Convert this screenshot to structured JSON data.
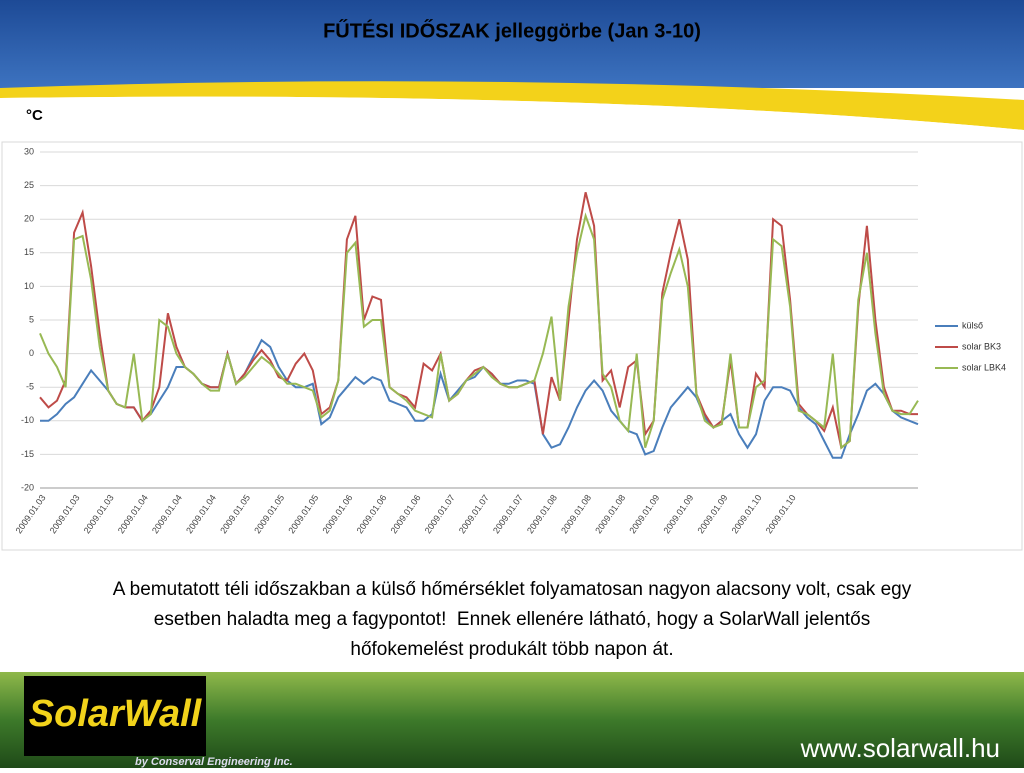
{
  "chart_data": {
    "type": "line",
    "title": "FŰTÉSI IDŐSZAK jelleggörbe (Jan 3-10)",
    "y_label": "°C",
    "categories": [
      "2009.01.03",
      null,
      null,
      null,
      "2009.01.03",
      null,
      null,
      null,
      "2009.01.03",
      null,
      null,
      null,
      "2009.01.04",
      null,
      null,
      null,
      "2009.01.04",
      null,
      null,
      null,
      "2009.01.04",
      null,
      null,
      null,
      "2009.01.05",
      null,
      null,
      null,
      "2009.01.05",
      null,
      null,
      null,
      "2009.01.05",
      null,
      null,
      null,
      "2009.01.06",
      null,
      null,
      null,
      "2009.01.06",
      null,
      null,
      null,
      "2009.01.06",
      null,
      null,
      null,
      "2009.01.07",
      null,
      null,
      null,
      "2009.01.07",
      null,
      null,
      null,
      "2009.01.07",
      null,
      null,
      null,
      "2009.01.08",
      null,
      null,
      null,
      "2009.01.08",
      null,
      null,
      null,
      "2009.01.08",
      null,
      null,
      null,
      "2009.01.09",
      null,
      null,
      null,
      "2009.01.09",
      null,
      null,
      null,
      "2009.01.09",
      null,
      null,
      null,
      "2009.01.10",
      null,
      null,
      null,
      "2009.01.10",
      null,
      null,
      null,
      null,
      null,
      null,
      null,
      null,
      null,
      null,
      null,
      null,
      null,
      null,
      null
    ],
    "series": [
      {
        "name": "külső",
        "color": "#4a7ebb",
        "values": [
          -10,
          -10,
          -9,
          -7.5,
          -6.5,
          -4.5,
          -2.5,
          -4,
          -5.5,
          -7.5,
          -8,
          -8,
          -10,
          -9,
          -7,
          -5,
          -2,
          -2,
          -3,
          -4.5,
          -5,
          -5,
          0,
          -4.5,
          -3,
          -0.5,
          2,
          1,
          -2,
          -4,
          -5,
          -5,
          -4.5,
          -10.5,
          -9.5,
          -6.5,
          -5,
          -3.5,
          -4.5,
          -3.5,
          -4,
          -7,
          -7.5,
          -8,
          -10,
          -10,
          -9,
          -3,
          -7,
          -5.5,
          -4,
          -3.5,
          -2,
          -3,
          -4.5,
          -4.5,
          -4,
          -4,
          -4.5,
          -12,
          -14,
          -13.5,
          -11,
          -8,
          -5.5,
          -4,
          -5.5,
          -8.5,
          -10,
          -11.5,
          -12,
          -15,
          -14.5,
          -11,
          -8,
          -6.5,
          -5,
          -6.5,
          -9.5,
          -11,
          -10,
          -9,
          -12,
          -14,
          -12,
          -7,
          -5,
          -5,
          -5.5,
          -8,
          -9.5,
          -10.5,
          -13,
          -15.5,
          -15.5,
          -12,
          -9,
          -5.5,
          -4.5,
          -6,
          -8.5,
          -9.5,
          -10,
          -10.5
        ]
      },
      {
        "name": "solar BK3",
        "color": "#be4b48",
        "values": [
          -6.5,
          -8,
          -7,
          -4,
          18,
          21,
          13,
          3,
          -5.5,
          -7.5,
          -8,
          -8,
          -10,
          -8.5,
          -5,
          6,
          1,
          -2,
          -3,
          -4.5,
          -5,
          -5,
          0,
          -4.5,
          -3,
          -1,
          0.5,
          -1,
          -3.5,
          -4,
          -1.5,
          0,
          -2.5,
          -9,
          -8,
          -4,
          17,
          20.5,
          5,
          8.5,
          8,
          -5,
          -6,
          -6.5,
          -8,
          -1.5,
          -2.5,
          0,
          -7,
          -6,
          -4,
          -2.5,
          -2,
          -3,
          -4.5,
          -5,
          -5,
          -4.5,
          -4,
          -12,
          -3.5,
          -7,
          5,
          17,
          24,
          19,
          -4,
          -2.5,
          -8,
          -2,
          -1,
          -12,
          -10,
          9,
          15,
          20,
          14,
          -6,
          -9,
          -11,
          -10,
          -1,
          -11,
          -11,
          -3,
          -5,
          20,
          19,
          8,
          -7.5,
          -9,
          -10,
          -11.5,
          -8,
          -14,
          -13,
          7,
          19,
          5,
          -5,
          -8.5,
          -8.5,
          -9,
          -9
        ]
      },
      {
        "name": "solar LBK4",
        "color": "#98b954",
        "values": [
          3,
          0,
          -2,
          -5,
          17,
          17.5,
          11,
          1,
          -5.5,
          -7.5,
          -8,
          0,
          -10,
          -9,
          5,
          4,
          0,
          -2,
          -3,
          -4.5,
          -5.5,
          -5.5,
          0,
          -4.5,
          -3.5,
          -2,
          -0.5,
          -1.5,
          -3,
          -4.5,
          -4.5,
          -5,
          -5.5,
          -9.5,
          -8.5,
          -4,
          15,
          16.5,
          4,
          5,
          5,
          -5,
          -6,
          -7,
          -8.5,
          -9,
          -9.5,
          0,
          -7,
          -6,
          -4,
          -3,
          -2,
          -3.5,
          -4.5,
          -5,
          -5,
          -4.5,
          -4,
          0,
          5.5,
          -7,
          7,
          15,
          20.5,
          17,
          -3,
          -5,
          -10,
          -11.5,
          0,
          -14,
          -10,
          8,
          12,
          15.5,
          10,
          -6,
          -10,
          -11,
          -10.5,
          0,
          -11,
          -11,
          -5,
          -4,
          17,
          16,
          7,
          -8.5,
          -9,
          -10,
          -11,
          0,
          -14,
          -13,
          8,
          15,
          3,
          -6,
          -8.5,
          -9,
          -9,
          -7
        ]
      }
    ],
    "ylim": [
      -20,
      30
    ],
    "yticks": [
      -20,
      -15,
      -10,
      -5,
      0,
      5,
      10,
      15,
      20,
      25,
      30
    ],
    "grid": true,
    "legend": "right"
  },
  "text": {
    "lines": [
      "A bemutatott téli időszakban a külső hőmérséklet folyamatosan nagyon alacsony volt, csak egy",
      "esetben haladta meg a fagypontot!  Ennek ellenére látható, hogy a SolarWall jelentős",
      "hőfokemelést produkált több napon át."
    ]
  },
  "footer": {
    "logo": "SolarWall",
    "byline": "by Conserval Engineering Inc.",
    "url": "www.solarwall.hu"
  }
}
